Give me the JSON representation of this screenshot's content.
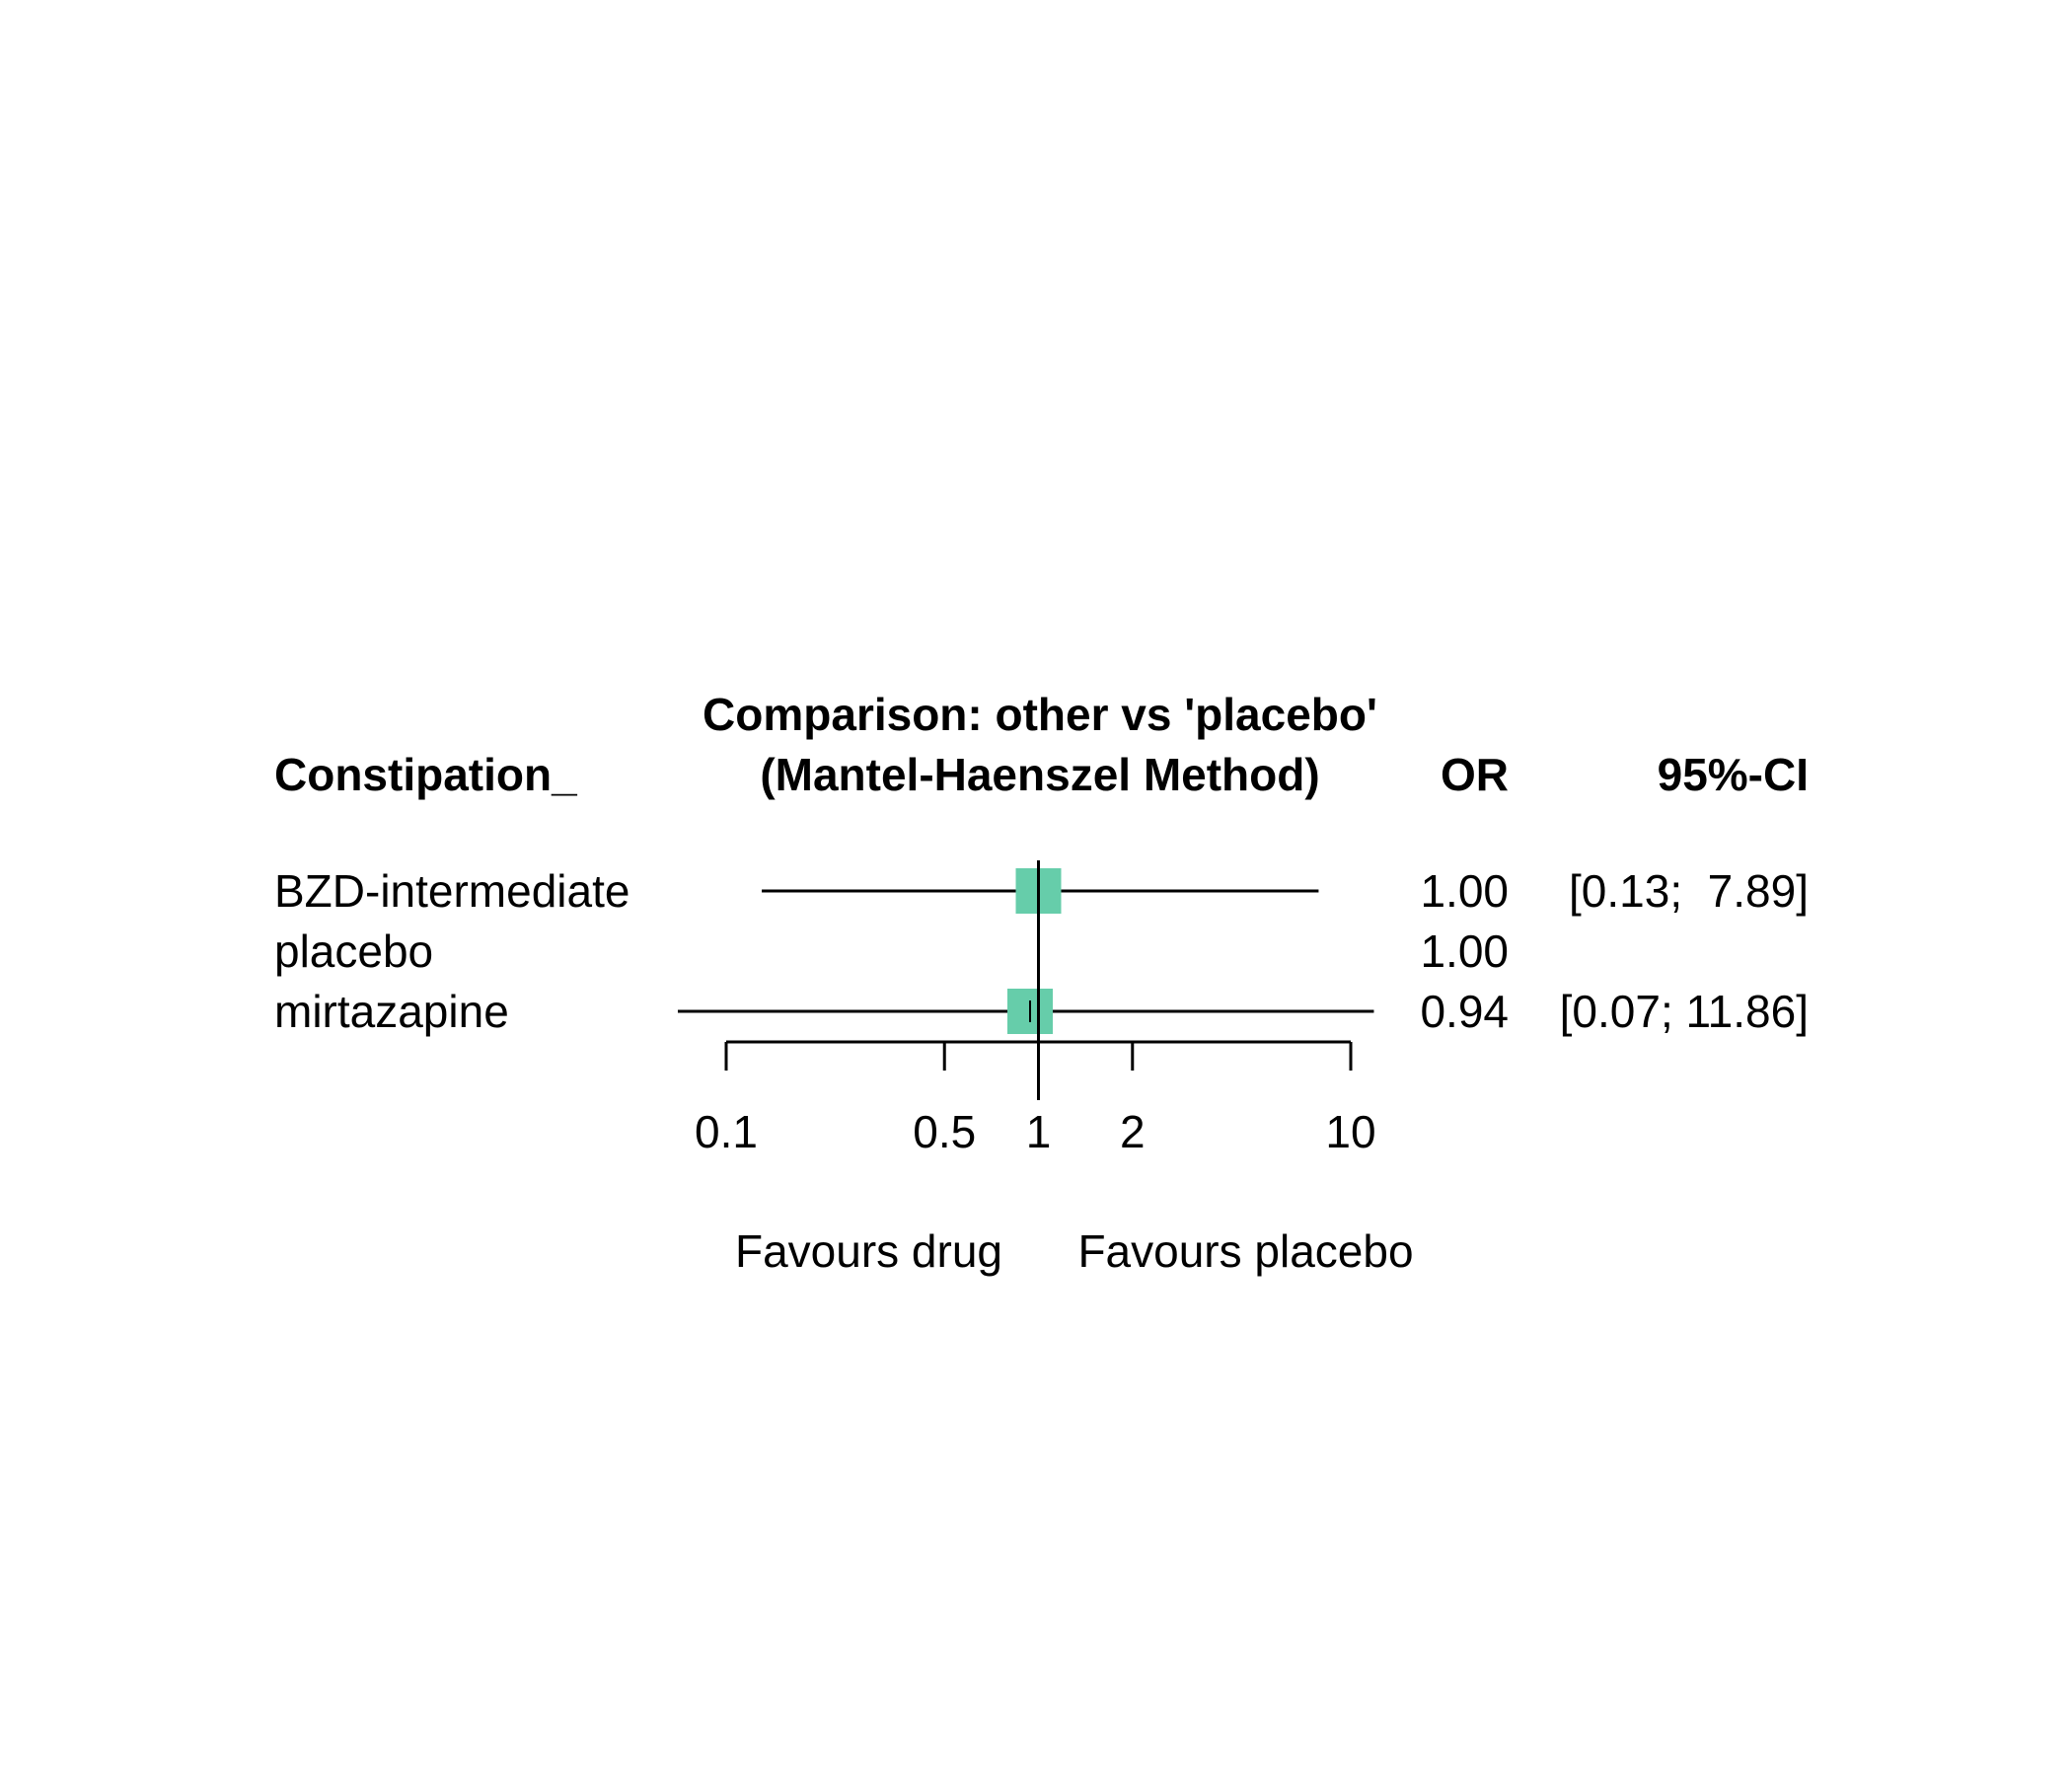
{
  "chart_data": {
    "type": "forest",
    "title": "Comparison: other vs 'placebo'",
    "subtitle": "(Mantel-Haenszel Method)",
    "columns": {
      "studlab": "Constipation_",
      "effect": "OR",
      "ci": "95%-CI"
    },
    "x_scale": "log",
    "xlim": [
      0.1,
      10
    ],
    "reference_line": 1,
    "xticks": [
      0.1,
      0.5,
      1,
      2,
      10
    ],
    "xtick_labels": [
      "0.1",
      "0.5",
      "1",
      "2",
      "10"
    ],
    "label_left": "Favours drug",
    "label_right": "Favours placebo",
    "square_color": "#66CDAA",
    "rows": [
      {
        "label": "BZD-intermediate",
        "or": 1.0,
        "lower": 0.13,
        "upper": 7.89,
        "or_text": "1.00",
        "ci_text": "[0.13;  7.89]"
      },
      {
        "label": "placebo",
        "or": 1.0,
        "lower": null,
        "upper": null,
        "or_text": "1.00",
        "ci_text": ""
      },
      {
        "label": "mirtazapine",
        "or": 0.94,
        "lower": 0.07,
        "upper": 11.86,
        "or_text": "0.94",
        "ci_text": "[0.07; 11.86]"
      }
    ]
  }
}
